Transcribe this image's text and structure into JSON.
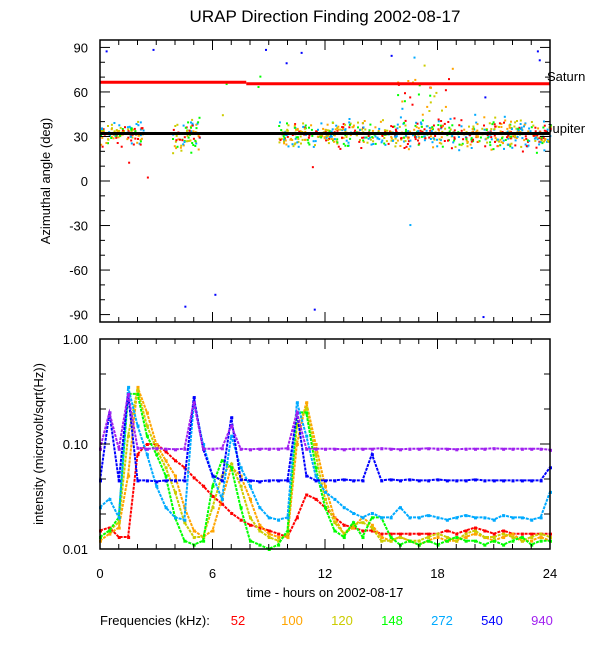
{
  "chart_data": [
    {
      "type": "scatter",
      "title": "URAP Direction Finding  2002-08-17",
      "ylabel": "Azimuthal angle (deg)",
      "xlim": [
        0,
        24
      ],
      "ylim": [
        -95,
        95
      ],
      "yticks": [
        90,
        60,
        30,
        0,
        -30,
        -60,
        -90
      ],
      "reference_lines": [
        {
          "name": "Saturn",
          "color": "#ff0000",
          "segments": [
            [
              0,
              7.8,
              66.5
            ],
            [
              7.8,
              24,
              65.5
            ]
          ]
        },
        {
          "name": "Jupiter",
          "color": "#000000",
          "segments": [
            [
              0,
              24,
              32
            ]
          ]
        }
      ],
      "clusters": [
        {
          "t": [
            0,
            2.3
          ],
          "center": 32,
          "spread": 5,
          "count": 110
        },
        {
          "t": [
            3.8,
            5.3
          ],
          "center": 32,
          "spread": 7,
          "count": 70
        },
        {
          "t": [
            9.5,
            18.5
          ],
          "center": 32,
          "spread": 6,
          "count": 420
        },
        {
          "t": [
            18.5,
            24
          ],
          "center": 32,
          "spread": 7,
          "count": 300
        },
        {
          "t": [
            15.8,
            18.8
          ],
          "center": 55,
          "spread": 16,
          "count": 40
        }
      ],
      "outliers": [
        {
          "t": 0.3,
          "y": 88,
          "f": 540
        },
        {
          "t": 2.8,
          "y": 89,
          "f": 540
        },
        {
          "t": 1.5,
          "y": 13,
          "f": 52
        },
        {
          "t": 2.5,
          "y": 3,
          "f": 52
        },
        {
          "t": 4.5,
          "y": -84,
          "f": 540
        },
        {
          "t": 6.1,
          "y": -76,
          "f": 540
        },
        {
          "t": 6.5,
          "y": 45,
          "f": 120
        },
        {
          "t": 6.7,
          "y": 66,
          "f": 148
        },
        {
          "t": 8.8,
          "y": 89,
          "f": 540
        },
        {
          "t": 9.9,
          "y": 80,
          "f": 540
        },
        {
          "t": 10.7,
          "y": 87,
          "f": 540
        },
        {
          "t": 11.4,
          "y": -86,
          "f": 540
        },
        {
          "t": 11.3,
          "y": 10,
          "f": 52
        },
        {
          "t": 15.5,
          "y": 85,
          "f": 540
        },
        {
          "t": 16.5,
          "y": -29,
          "f": 272
        },
        {
          "t": 20.4,
          "y": -91,
          "f": 540
        },
        {
          "t": 23.3,
          "y": 88,
          "f": 540
        },
        {
          "t": 23.4,
          "y": 82,
          "f": 540
        },
        {
          "t": 8.4,
          "y": 64,
          "f": 148
        },
        {
          "t": 8.5,
          "y": 71,
          "f": 148
        },
        {
          "t": 20.5,
          "y": 57,
          "f": 540
        }
      ]
    },
    {
      "type": "line",
      "ylabel": "intensity (microvolt/sqrt(Hz))",
      "xlabel": "time - hours on 2002-08-17",
      "xlim": [
        0,
        24
      ],
      "xticks": [
        "0",
        "6",
        "12",
        "18",
        "24"
      ],
      "yscale": "log",
      "ylim": [
        0.01,
        1.0
      ],
      "yticks": [
        "0.01",
        "0.10",
        "1.00"
      ],
      "x_step_hours": 0.5,
      "series": [
        {
          "name": "52",
          "color": "#ff0000",
          "values": [
            0.015,
            0.016,
            0.013,
            0.013,
            0.08,
            0.1,
            0.1,
            0.085,
            0.07,
            0.06,
            0.048,
            0.04,
            0.032,
            0.027,
            0.022,
            0.019,
            0.017,
            0.016,
            0.015,
            0.014,
            0.013,
            0.02,
            0.033,
            0.03,
            0.025,
            0.02,
            0.017,
            0.016,
            0.015,
            0.015,
            0.014,
            0.014,
            0.014,
            0.014,
            0.014,
            0.014,
            0.014,
            0.015,
            0.014,
            0.015,
            0.016,
            0.015,
            0.014,
            0.015,
            0.014,
            0.014,
            0.014,
            0.014,
            0.014
          ]
        },
        {
          "name": "100",
          "color": "#ffa500",
          "values": [
            0.012,
            0.014,
            0.016,
            0.05,
            0.35,
            0.2,
            0.1,
            0.07,
            0.05,
            0.025,
            0.015,
            0.013,
            0.015,
            0.03,
            0.06,
            0.05,
            0.03,
            0.017,
            0.014,
            0.013,
            0.013,
            0.1,
            0.25,
            0.1,
            0.04,
            0.02,
            0.014,
            0.016,
            0.02,
            0.017,
            0.013,
            0.012,
            0.013,
            0.012,
            0.011,
            0.012,
            0.013,
            0.012,
            0.012,
            0.013,
            0.014,
            0.013,
            0.012,
            0.013,
            0.014,
            0.012,
            0.012,
            0.013,
            0.012
          ]
        },
        {
          "name": "120",
          "color": "#cccc00",
          "values": [
            0.013,
            0.015,
            0.018,
            0.12,
            0.33,
            0.15,
            0.09,
            0.06,
            0.035,
            0.018,
            0.013,
            0.013,
            0.025,
            0.05,
            0.065,
            0.04,
            0.02,
            0.015,
            0.013,
            0.012,
            0.014,
            0.15,
            0.22,
            0.08,
            0.03,
            0.018,
            0.014,
            0.017,
            0.018,
            0.016,
            0.012,
            0.012,
            0.013,
            0.012,
            0.012,
            0.013,
            0.014,
            0.013,
            0.012,
            0.014,
            0.015,
            0.013,
            0.013,
            0.014,
            0.013,
            0.012,
            0.013,
            0.014,
            0.013
          ]
        },
        {
          "name": "148",
          "color": "#00ff00",
          "values": [
            0.013,
            0.015,
            0.02,
            0.3,
            0.3,
            0.12,
            0.08,
            0.05,
            0.02,
            0.012,
            0.011,
            0.012,
            0.04,
            0.07,
            0.06,
            0.025,
            0.012,
            0.011,
            0.01,
            0.011,
            0.015,
            0.2,
            0.2,
            0.06,
            0.025,
            0.015,
            0.013,
            0.018,
            0.013,
            0.02,
            0.02,
            0.013,
            0.011,
            0.012,
            0.011,
            0.012,
            0.011,
            0.012,
            0.013,
            0.012,
            0.012,
            0.011,
            0.012,
            0.011,
            0.012,
            0.013,
            0.011,
            0.012,
            0.012
          ]
        },
        {
          "name": "272",
          "color": "#00aaff",
          "values": [
            0.025,
            0.03,
            0.02,
            0.35,
            0.15,
            0.08,
            0.04,
            0.025,
            0.02,
            0.019,
            0.25,
            0.1,
            0.05,
            0.03,
            0.12,
            0.06,
            0.04,
            0.025,
            0.02,
            0.019,
            0.02,
            0.25,
            0.12,
            0.05,
            0.035,
            0.03,
            0.025,
            0.022,
            0.02,
            0.022,
            0.02,
            0.02,
            0.025,
            0.02,
            0.02,
            0.021,
            0.02,
            0.019,
            0.02,
            0.021,
            0.02,
            0.02,
            0.019,
            0.021,
            0.02,
            0.02,
            0.019,
            0.02,
            0.035
          ]
        },
        {
          "name": "540",
          "color": "#0000ff",
          "values": [
            0.045,
            0.2,
            0.045,
            0.3,
            0.045,
            0.045,
            0.044,
            0.045,
            0.045,
            0.045,
            0.28,
            0.09,
            0.05,
            0.045,
            0.18,
            0.046,
            0.045,
            0.044,
            0.045,
            0.045,
            0.045,
            0.2,
            0.05,
            0.045,
            0.045,
            0.045,
            0.046,
            0.045,
            0.045,
            0.08,
            0.045,
            0.046,
            0.045,
            0.046,
            0.045,
            0.045,
            0.046,
            0.045,
            0.045,
            0.045,
            0.046,
            0.045,
            0.045,
            0.045,
            0.045,
            0.045,
            0.045,
            0.045,
            0.06
          ]
        },
        {
          "name": "940",
          "color": "#a020f0",
          "values": [
            0.09,
            0.2,
            0.09,
            0.3,
            0.092,
            0.09,
            0.091,
            0.09,
            0.089,
            0.09,
            0.25,
            0.09,
            0.09,
            0.091,
            0.15,
            0.09,
            0.089,
            0.09,
            0.09,
            0.09,
            0.091,
            0.2,
            0.09,
            0.09,
            0.09,
            0.09,
            0.089,
            0.09,
            0.09,
            0.09,
            0.091,
            0.09,
            0.089,
            0.09,
            0.09,
            0.091,
            0.09,
            0.09,
            0.089,
            0.09,
            0.09,
            0.09,
            0.091,
            0.09,
            0.09,
            0.09,
            0.09,
            0.09,
            0.088
          ]
        }
      ]
    }
  ],
  "legend": {
    "label": "Frequencies (kHz):",
    "items": [
      "52",
      "100",
      "120",
      "148",
      "272",
      "540",
      "940"
    ]
  }
}
